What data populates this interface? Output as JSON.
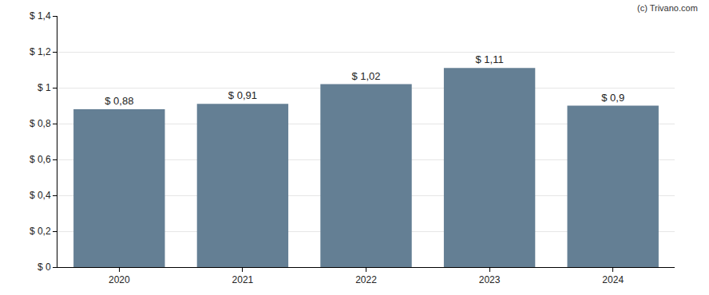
{
  "chart_data": {
    "type": "bar",
    "categories": [
      "2020",
      "2021",
      "2022",
      "2023",
      "2024"
    ],
    "values": [
      0.88,
      0.91,
      1.02,
      1.11,
      0.9
    ],
    "value_labels": [
      "$ 0,88",
      "$ 0,91",
      "$ 1,02",
      "$ 1,11",
      "$ 0,9"
    ],
    "data_labels": true,
    "color": "#647f94",
    "ylim": [
      0,
      1.4
    ],
    "yticks": [
      {
        "value": 0,
        "label": "$ 0"
      },
      {
        "value": 0.2,
        "label": "$ 0,2"
      },
      {
        "value": 0.4,
        "label": "$ 0,4"
      },
      {
        "value": 0.6,
        "label": "$ 0,6"
      },
      {
        "value": 0.8,
        "label": "$ 0,8"
      },
      {
        "value": 1,
        "label": "$ 1"
      },
      {
        "value": 1.2,
        "label": "$ 1,2"
      },
      {
        "value": 1.4,
        "label": "$ 1,4"
      }
    ],
    "grid": true,
    "annotations": [
      "(c) Trivano.com"
    ]
  }
}
